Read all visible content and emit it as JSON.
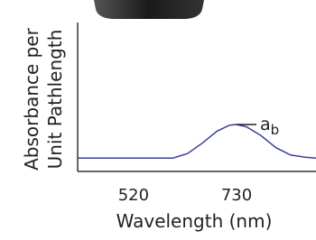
{
  "chart_data": {
    "type": "line",
    "y_label_lines": [
      "Absorbance per",
      "Unit Pathlength"
    ],
    "x_label": "Wavelength (nm)",
    "xlim": [
      406,
      892
    ],
    "xticks": [
      520,
      730
    ],
    "ylim": [
      0,
      1
    ],
    "annotation": {
      "text": "a",
      "subscript": "b",
      "x": 730,
      "y": 0.315
    },
    "series": [
      {
        "color": "#3a3f9c",
        "x": [
          406,
          600,
          630,
          660,
          690,
          715,
          730,
          750,
          780,
          810,
          840,
          870,
          892
        ],
        "values": [
          0.09,
          0.09,
          0.12,
          0.19,
          0.27,
          0.31,
          0.315,
          0.3,
          0.24,
          0.16,
          0.11,
          0.095,
          0.09
        ]
      }
    ]
  }
}
